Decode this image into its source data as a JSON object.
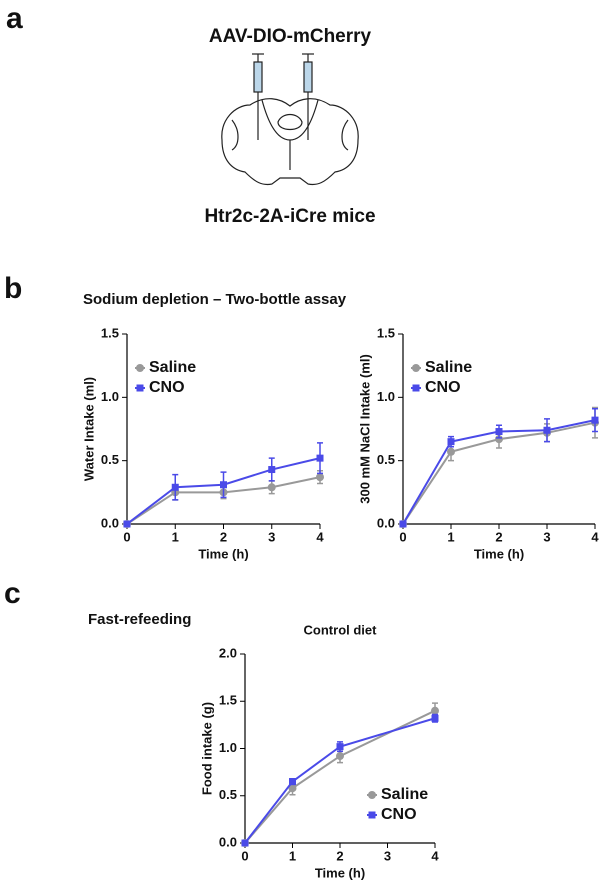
{
  "panels": [
    "a",
    "b",
    "c"
  ],
  "diagram": {
    "virus": "AAV-DIO-mCherry",
    "mice": "Htr2c-2A-iCre mice"
  },
  "section_b_title": "Sodium depletion – Two-bottle assay",
  "section_c_title": "Fast-refeeding",
  "chart_data": [
    {
      "type": "line",
      "x": [
        0,
        1,
        2,
        3,
        4
      ],
      "xlim": [
        0,
        4
      ],
      "xticks": [
        0,
        1,
        2,
        3,
        4
      ],
      "ylim": [
        0,
        1.5
      ],
      "yticks": [
        {
          "value": 0,
          "label": "0.0"
        },
        0.5,
        {
          "value": 1,
          "label": "1.0"
        },
        1.5
      ],
      "x_label": "Time (h)",
      "y_label": "Water Intake (ml)",
      "legend": "upper left",
      "series": [
        {
          "name": "Saline",
          "color": "#999999",
          "marker": "circle",
          "values": [
            0,
            0.25,
            0.25,
            0.29,
            0.37
          ],
          "errors": [
            0,
            0.06,
            0.05,
            0.05,
            0.05
          ]
        },
        {
          "name": "CNO",
          "color": "#4a4ae8",
          "marker": "square",
          "values": [
            0,
            0.29,
            0.31,
            0.43,
            0.52
          ],
          "errors": [
            0,
            0.1,
            0.1,
            0.09,
            0.12
          ]
        }
      ]
    },
    {
      "type": "line",
      "x": [
        0,
        1,
        2,
        3,
        4
      ],
      "xlim": [
        0,
        4
      ],
      "xticks": [
        0,
        1,
        2,
        3,
        4
      ],
      "ylim": [
        0,
        1.5
      ],
      "yticks": [
        {
          "value": 0,
          "label": "0.0"
        },
        0.5,
        {
          "value": 1,
          "label": "1.0"
        },
        1.5
      ],
      "x_label": "Time (h)",
      "y_label": "300 mM NaCl Intake (ml)",
      "legend": "upper left",
      "series": [
        {
          "name": "Saline",
          "color": "#999999",
          "marker": "circle",
          "values": [
            0,
            0.57,
            0.67,
            0.72,
            0.8
          ],
          "errors": [
            0,
            0.07,
            0.07,
            0.07,
            0.12
          ]
        },
        {
          "name": "CNO",
          "color": "#4a4ae8",
          "marker": "square",
          "values": [
            0,
            0.65,
            0.73,
            0.74,
            0.82
          ],
          "errors": [
            0,
            0.04,
            0.05,
            0.09,
            0.09
          ]
        }
      ]
    },
    {
      "type": "line",
      "title": "Control diet",
      "x": [
        0,
        1,
        2,
        4
      ],
      "xlim": [
        0,
        4
      ],
      "xticks": [
        0,
        1,
        2,
        3,
        4
      ],
      "ylim": [
        0,
        2
      ],
      "yticks": [
        {
          "value": 0,
          "label": "0.0"
        },
        0.5,
        {
          "value": 1,
          "label": "1.0"
        },
        1.5,
        {
          "value": 2,
          "label": "2.0"
        }
      ],
      "x_label": "Time (h)",
      "y_label": "Food intake (g)",
      "legend": "lower right",
      "series": [
        {
          "name": "Saline",
          "color": "#999999",
          "marker": "circle",
          "values": [
            0,
            0.58,
            0.92,
            1.4
          ],
          "errors": [
            0,
            0.07,
            0.07,
            0.08
          ]
        },
        {
          "name": "CNO",
          "color": "#4a4ae8",
          "marker": "square",
          "values": [
            0,
            0.65,
            1.02,
            1.32
          ],
          "errors": [
            0,
            0.03,
            0.05,
            0.04
          ]
        }
      ]
    }
  ]
}
